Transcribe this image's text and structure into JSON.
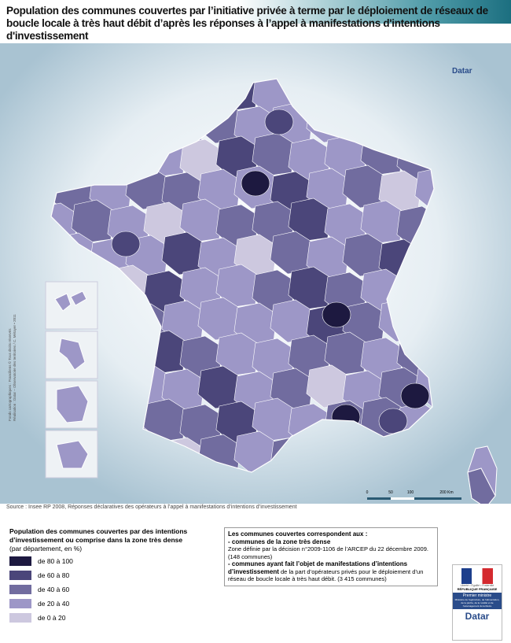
{
  "header": {
    "title": "Population des communes couvertes par l’initiative privée à terme par le déploiement de réseaux de boucle locale à très haut débit d’après les réponses à l’appel à manifestations d'intentions d'investissement"
  },
  "map": {
    "brand": "Datar",
    "credits": [
      "Fonds cartographiques : Franciliens © Tous droits réservés",
      "Réalisation : Datar – Observatoire des territoires / C. Métayer • 2011"
    ],
    "scale": [
      "0",
      "50",
      "100",
      "200 Km"
    ],
    "source": "Source : Insee RP 2008, Réponses déclaratives des opérateurs à l’appel à manifestations d’intentions d’investissement"
  },
  "legend": {
    "title": "Population des communes couvertes par des intentions d’investissement ou comprise dans la zone très dense",
    "subtitle": "(par département, en %)",
    "items": [
      {
        "label": "de 80 à 100",
        "color": "#1d1940"
      },
      {
        "label": "de 60 à 80",
        "color": "#4b467a"
      },
      {
        "label": "de 40 à 60",
        "color": "#716c9f"
      },
      {
        "label": "de 20 à 40",
        "color": "#9d97c7"
      },
      {
        "label": "de 0 à 20",
        "color": "#cdc8df"
      }
    ]
  },
  "notes": {
    "heading": "Les communes couvertes correspondent aux :",
    "item1": "- communes de la zone très dense",
    "item1_detail": "Zone définie par la décision n°2009-1106 de l’ARCEP du 22 décembre 2009. (148 communes)",
    "item2": "- communes ayant fait l’objet de manifestations d’intentions d’investissement",
    "item2_detail": "de la part d’opérateurs privés pour le déploiement d’un réseau de boucle locale à très haut débit. (3 415 communes)"
  },
  "logo": {
    "motto": "Liberté • Égalité • Fraternité",
    "republic": "RÉPUBLIQUE FRANÇAISE",
    "ministry": "Premier ministre",
    "ministry_detail": "Ministère de l’agriculture, de l’alimentation, de la pêche, de la ruralité et de l’aménagement du territoire",
    "brand": "Datar"
  }
}
